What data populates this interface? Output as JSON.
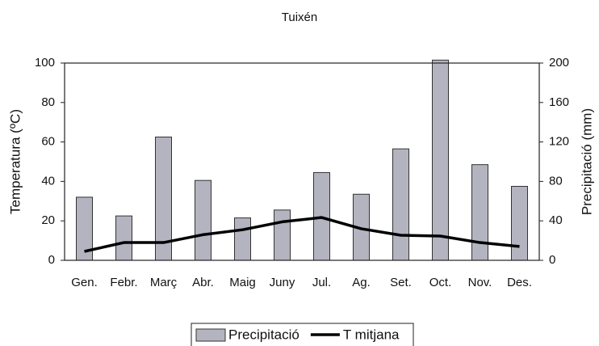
{
  "chart_data": {
    "type": "bar",
    "title": "Tuixén",
    "categories": [
      "Gen.",
      "Febr.",
      "Març",
      "Abr.",
      "Maig",
      "Juny",
      "Jul.",
      "Ag.",
      "Set.",
      "Oct.",
      "Nov.",
      "Des."
    ],
    "series": [
      {
        "name": "Precipitació",
        "type": "bar",
        "color": "#b4b4c0",
        "axis": "y2",
        "values": [
          64,
          45,
          125,
          81,
          43,
          51,
          89,
          67,
          113,
          203,
          97,
          75
        ]
      },
      {
        "name": "T mitjana",
        "type": "line",
        "color": "#000000",
        "values": [
          4.5,
          9,
          9,
          13,
          15.5,
          19.5,
          21.7,
          16,
          12.7,
          12.3,
          9,
          7
        ]
      }
    ],
    "ylabel": "Temperatura (ºC)",
    "y2label": "Precipitació (mm)",
    "ylim": [
      0,
      100
    ],
    "yticks": [
      0,
      20,
      40,
      60,
      80,
      100
    ],
    "y2lim": [
      0,
      200
    ],
    "y2ticks": [
      0,
      40,
      80,
      120,
      160,
      200
    ],
    "grid": false,
    "legend": "bottom"
  }
}
